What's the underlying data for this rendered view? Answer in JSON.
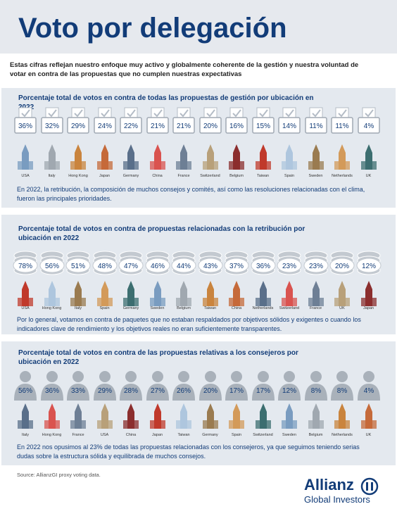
{
  "header": {
    "title": "Voto por delegación",
    "intro": "Estas cifras reflejan nuestro enfoque muy activo y globalmente coherente de la gestión y nuestra voluntad de votar en contra de las propuestas que no cumplen nuestras expectativas"
  },
  "sections": [
    {
      "heading": "Porcentaje total de votos en contra de todas las propuestas de gestión por ubicación en 2022",
      "items": [
        {
          "label": "USA",
          "value": "36%"
        },
        {
          "label": "Italy",
          "value": "32%"
        },
        {
          "label": "Hong Kong",
          "value": "29%"
        },
        {
          "label": "Japan",
          "value": "24%"
        },
        {
          "label": "Germany",
          "value": "22%"
        },
        {
          "label": "China",
          "value": "21%"
        },
        {
          "label": "France",
          "value": "21%"
        },
        {
          "label": "Switzerland",
          "value": "20%"
        },
        {
          "label": "Belgium",
          "value": "16%"
        },
        {
          "label": "Taiwan",
          "value": "15%"
        },
        {
          "label": "Spain",
          "value": "14%"
        },
        {
          "label": "Sweden",
          "value": "11%"
        },
        {
          "label": "Netherlands",
          "value": "11%"
        },
        {
          "label": "UK",
          "value": "4%"
        }
      ],
      "note": "En 2022, la retribución, la composición de muchos consejos y comités, así como las resoluciones relacionadas con el clima, fueron las principales prioridades."
    },
    {
      "heading": "Porcentaje total de votos en contra de propuestas relacionadas con la retribución por ubicación en 2022",
      "items": [
        {
          "label": "USA",
          "value": "78%"
        },
        {
          "label": "Hong Kong",
          "value": "56%"
        },
        {
          "label": "Italy",
          "value": "51%"
        },
        {
          "label": "Spain",
          "value": "48%"
        },
        {
          "label": "Germany",
          "value": "47%"
        },
        {
          "label": "Sweden",
          "value": "46%"
        },
        {
          "label": "Belgium",
          "value": "44%"
        },
        {
          "label": "Taiwan",
          "value": "43%"
        },
        {
          "label": "China",
          "value": "37%"
        },
        {
          "label": "Netherlands",
          "value": "36%"
        },
        {
          "label": "Switzerland",
          "value": "23%"
        },
        {
          "label": "France",
          "value": "23%"
        },
        {
          "label": "UK",
          "value": "20%"
        },
        {
          "label": "Japan",
          "value": "12%"
        }
      ],
      "note": "Por lo general, votamos en contra de paquetes que no estaban respaldados por objetivos sólidos y exigentes o cuando los indicadores clave de rendimiento y los objetivos reales no eran suficientemente transparentes."
    },
    {
      "heading": "Porcentaje total de votos en contra de las propuestas relativas a los consejeros por ubicación en 2022",
      "items": [
        {
          "label": "Italy",
          "value": "56%"
        },
        {
          "label": "Hong Kong",
          "value": "36%"
        },
        {
          "label": "France",
          "value": "33%"
        },
        {
          "label": "USA",
          "value": "29%"
        },
        {
          "label": "China",
          "value": "28%"
        },
        {
          "label": "Japan",
          "value": "27%"
        },
        {
          "label": "Taiwan",
          "value": "26%"
        },
        {
          "label": "Germany",
          "value": "20%"
        },
        {
          "label": "Spain",
          "value": "17%"
        },
        {
          "label": "Switzerland",
          "value": "17%"
        },
        {
          "label": "Sweden",
          "value": "12%"
        },
        {
          "label": "Belgium",
          "value": "8%"
        },
        {
          "label": "Netherlands",
          "value": "8%"
        },
        {
          "label": "UK",
          "value": "4%"
        }
      ],
      "note": "En 2022 nos opusimos al 23% de todas las propuestas relacionadas con los consejeros, ya que seguimos teniendo serias dudas sobre la estructura sólida y equilibrada de muchos consejos."
    }
  ],
  "footer": {
    "source": "Source: AllianzGI proxy voting data.",
    "brand": "Allianz",
    "brand_sub": "Global Investors"
  }
}
